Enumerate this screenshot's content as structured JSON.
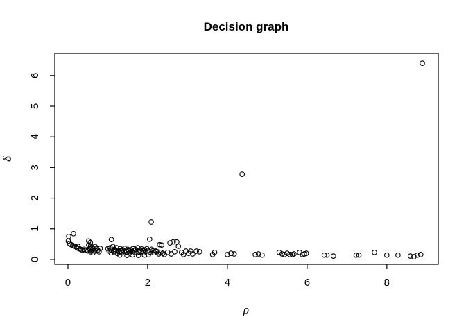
{
  "chart_data": {
    "type": "scatter",
    "title": "Decision graph",
    "xlabel": "ρ",
    "ylabel": "δ",
    "x_ticks": [
      0,
      2,
      4,
      6,
      8
    ],
    "y_ticks": [
      0,
      1,
      2,
      3,
      4,
      5,
      6
    ],
    "xlim": [
      -0.33,
      9.29
    ],
    "ylim": [
      -0.16,
      6.72
    ],
    "grid": false,
    "legend": "none",
    "marker": {
      "shape": "open-circle",
      "color": "#000000",
      "radius": 3.3
    },
    "points": [
      [
        0.02,
        0.75
      ],
      [
        0.14,
        0.84
      ],
      [
        0.01,
        0.6
      ],
      [
        0.04,
        0.52
      ],
      [
        0.08,
        0.48
      ],
      [
        0.12,
        0.45
      ],
      [
        0.16,
        0.43
      ],
      [
        0.2,
        0.41
      ],
      [
        0.23,
        0.38
      ],
      [
        0.26,
        0.36
      ],
      [
        0.25,
        0.43
      ],
      [
        0.3,
        0.34
      ],
      [
        0.33,
        0.32
      ],
      [
        0.36,
        0.3
      ],
      [
        0.4,
        0.33
      ],
      [
        0.43,
        0.29
      ],
      [
        0.47,
        0.31
      ],
      [
        0.5,
        0.28
      ],
      [
        0.52,
        0.6
      ],
      [
        0.56,
        0.55
      ],
      [
        0.52,
        0.47
      ],
      [
        0.57,
        0.44
      ],
      [
        0.61,
        0.4
      ],
      [
        0.55,
        0.35
      ],
      [
        0.63,
        0.35
      ],
      [
        0.6,
        0.3
      ],
      [
        0.66,
        0.28
      ],
      [
        0.57,
        0.25
      ],
      [
        0.63,
        0.22
      ],
      [
        0.68,
        0.42
      ],
      [
        0.72,
        0.35
      ],
      [
        0.7,
        0.28
      ],
      [
        0.75,
        0.3
      ],
      [
        0.78,
        0.25
      ],
      [
        0.81,
        0.36
      ],
      [
        1.0,
        0.35
      ],
      [
        1.03,
        0.28
      ],
      [
        1.06,
        0.38
      ],
      [
        1.09,
        0.65
      ],
      [
        1.08,
        0.22
      ],
      [
        1.1,
        0.3
      ],
      [
        1.13,
        0.42
      ],
      [
        1.15,
        0.25
      ],
      [
        1.17,
        0.33
      ],
      [
        1.2,
        0.28
      ],
      [
        1.22,
        0.38
      ],
      [
        1.24,
        0.2
      ],
      [
        1.26,
        0.3
      ],
      [
        1.28,
        0.25
      ],
      [
        1.3,
        0.14
      ],
      [
        1.31,
        0.35
      ],
      [
        1.33,
        0.28
      ],
      [
        1.35,
        0.22
      ],
      [
        1.37,
        0.32
      ],
      [
        1.4,
        0.26
      ],
      [
        1.42,
        0.36
      ],
      [
        1.45,
        0.3
      ],
      [
        1.47,
        0.24
      ],
      [
        1.48,
        0.13
      ],
      [
        1.5,
        0.33
      ],
      [
        1.52,
        0.27
      ],
      [
        1.55,
        0.21
      ],
      [
        1.57,
        0.31
      ],
      [
        1.6,
        0.26
      ],
      [
        1.62,
        0.15
      ],
      [
        1.63,
        0.35
      ],
      [
        1.65,
        0.29
      ],
      [
        1.68,
        0.23
      ],
      [
        1.7,
        0.32
      ],
      [
        1.73,
        0.27
      ],
      [
        1.75,
        0.38
      ],
      [
        1.77,
        0.13
      ],
      [
        1.78,
        0.24
      ],
      [
        1.8,
        0.3
      ],
      [
        1.83,
        0.26
      ],
      [
        1.85,
        0.34
      ],
      [
        1.88,
        0.28
      ],
      [
        1.9,
        0.22
      ],
      [
        1.92,
        0.14
      ],
      [
        1.93,
        0.31
      ],
      [
        1.95,
        0.26
      ],
      [
        1.98,
        0.35
      ],
      [
        2.0,
        0.29
      ],
      [
        2.02,
        0.15
      ],
      [
        2.05,
        0.66
      ],
      [
        2.06,
        0.24
      ],
      [
        2.09,
        1.22
      ],
      [
        2.1,
        0.33
      ],
      [
        2.13,
        0.28
      ],
      [
        2.16,
        0.22
      ],
      [
        2.18,
        0.3
      ],
      [
        2.21,
        0.26
      ],
      [
        2.24,
        0.25
      ],
      [
        2.28,
        0.18
      ],
      [
        2.3,
        0.48
      ],
      [
        2.33,
        0.23
      ],
      [
        2.35,
        0.47
      ],
      [
        2.38,
        0.2
      ],
      [
        2.42,
        0.16
      ],
      [
        2.5,
        0.23
      ],
      [
        2.56,
        0.54
      ],
      [
        2.59,
        0.18
      ],
      [
        2.64,
        0.57
      ],
      [
        2.68,
        0.25
      ],
      [
        2.73,
        0.57
      ],
      [
        2.77,
        0.43
      ],
      [
        2.85,
        0.23
      ],
      [
        2.9,
        0.16
      ],
      [
        2.96,
        0.27
      ],
      [
        3.03,
        0.2
      ],
      [
        3.08,
        0.27
      ],
      [
        3.13,
        0.18
      ],
      [
        3.22,
        0.27
      ],
      [
        3.3,
        0.25
      ],
      [
        3.63,
        0.16
      ],
      [
        3.68,
        0.23
      ],
      [
        4.0,
        0.16
      ],
      [
        4.09,
        0.2
      ],
      [
        4.17,
        0.18
      ],
      [
        4.37,
        2.78
      ],
      [
        4.7,
        0.16
      ],
      [
        4.78,
        0.18
      ],
      [
        4.87,
        0.14
      ],
      [
        5.3,
        0.23
      ],
      [
        5.37,
        0.18
      ],
      [
        5.43,
        0.16
      ],
      [
        5.5,
        0.2
      ],
      [
        5.57,
        0.16
      ],
      [
        5.63,
        0.16
      ],
      [
        5.67,
        0.18
      ],
      [
        5.81,
        0.23
      ],
      [
        5.88,
        0.16
      ],
      [
        5.93,
        0.18
      ],
      [
        5.98,
        0.2
      ],
      [
        6.43,
        0.14
      ],
      [
        6.5,
        0.14
      ],
      [
        6.66,
        0.11
      ],
      [
        7.23,
        0.14
      ],
      [
        7.3,
        0.14
      ],
      [
        7.69,
        0.23
      ],
      [
        8.0,
        0.14
      ],
      [
        8.28,
        0.14
      ],
      [
        8.59,
        0.11
      ],
      [
        8.68,
        0.09
      ],
      [
        8.77,
        0.14
      ],
      [
        8.85,
        0.16
      ],
      [
        8.89,
        6.4
      ]
    ]
  }
}
